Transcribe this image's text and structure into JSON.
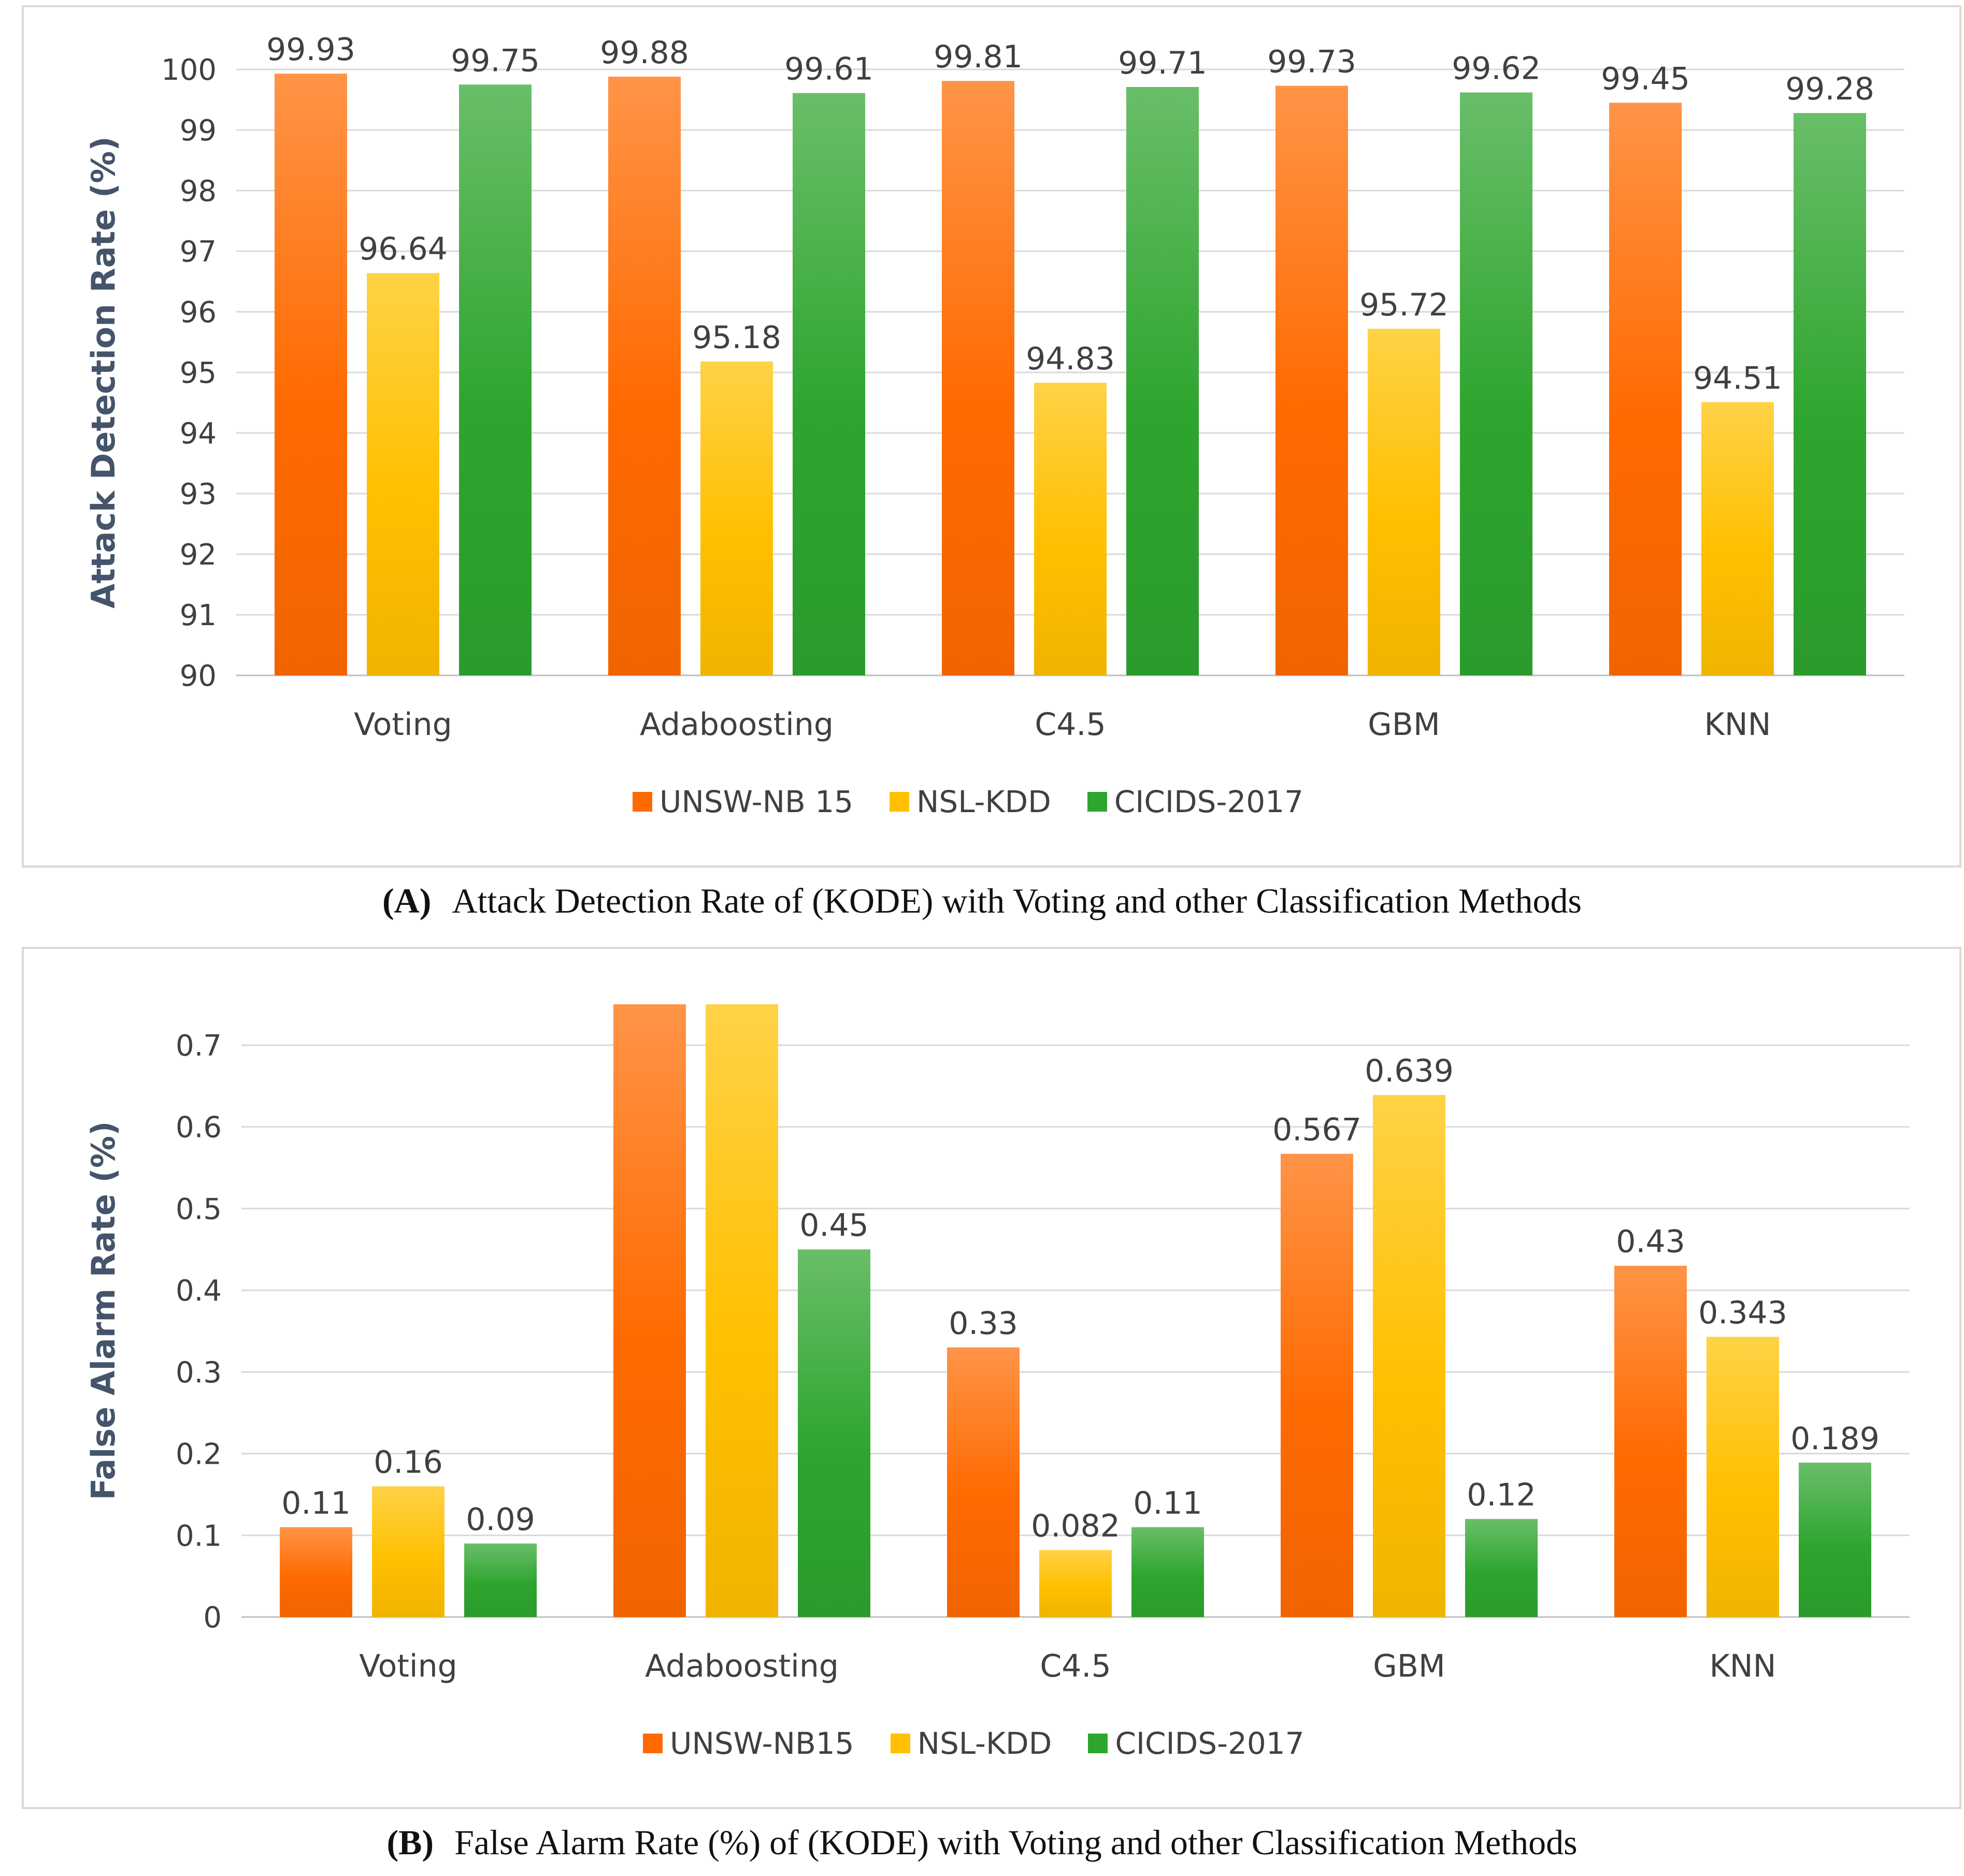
{
  "chart_data": [
    {
      "type": "bar",
      "title": "",
      "ylabel": "Attack Detection Rate (%)",
      "xlabel": "",
      "ylim": [
        90,
        100
      ],
      "yticks": [
        90,
        91,
        92,
        93,
        94,
        95,
        96,
        97,
        98,
        99,
        100
      ],
      "categories": [
        "Voting",
        "Adaboosting",
        "C4.5",
        "GBM",
        "KNN"
      ],
      "series": [
        {
          "name": "UNSW-NB 15",
          "color": "#ff6a00",
          "values": [
            99.93,
            99.88,
            99.81,
            99.73,
            99.45
          ]
        },
        {
          "name": "NSL-KDD",
          "color": "#ffc000",
          "values": [
            96.64,
            95.18,
            94.83,
            95.72,
            94.51
          ]
        },
        {
          "name": "CICIDS-2017",
          "color": "#2ea52e",
          "values": [
            99.75,
            99.61,
            99.71,
            99.62,
            99.28
          ]
        }
      ],
      "data_labels": [
        [
          "99.93",
          "99.88",
          "99.81",
          "99.73",
          "99.45"
        ],
        [
          "96.64",
          "95.18",
          "94.83",
          "95.72",
          "94.51"
        ],
        [
          "99.75",
          "99.61",
          "99.71",
          "99.62",
          "99.28"
        ]
      ],
      "grid": true,
      "legend": "bottom"
    },
    {
      "type": "bar",
      "title": "",
      "ylabel": "False Alarm Rate (%)",
      "xlabel": "",
      "ylim": [
        0,
        0.75
      ],
      "yticks": [
        0,
        0.1,
        0.2,
        0.3,
        0.4,
        0.5,
        0.6,
        0.7
      ],
      "categories": [
        "Voting",
        "Adaboosting",
        "C4.5",
        "GBM",
        "KNN"
      ],
      "series": [
        {
          "name": "UNSW-NB15",
          "color": "#ff6a00",
          "values": [
            0.11,
            0.75,
            0.33,
            0.567,
            0.43
          ]
        },
        {
          "name": "NSL-KDD",
          "color": "#ffc000",
          "values": [
            0.16,
            0.75,
            0.082,
            0.639,
            0.343
          ]
        },
        {
          "name": "CICIDS-2017",
          "color": "#2ea52e",
          "values": [
            0.09,
            0.45,
            0.11,
            0.12,
            0.189
          ]
        }
      ],
      "data_labels": [
        [
          "0.11",
          "",
          "0.33",
          "0.567",
          "0.43"
        ],
        [
          "0.16",
          "",
          "0.082",
          "0.639",
          "0.343"
        ],
        [
          "0.09",
          "0.45",
          "0.11",
          "0.12",
          "0.189"
        ]
      ],
      "grid": true,
      "legend": "bottom"
    }
  ],
  "captions": {
    "a": {
      "tag": "(A)",
      "text": "Attack Detection Rate of (KODE) with Voting and other Classification Methods"
    },
    "b": {
      "tag": "(B)",
      "text": "False Alarm Rate (%) of (KODE) with Voting and other Classification Methods"
    }
  }
}
